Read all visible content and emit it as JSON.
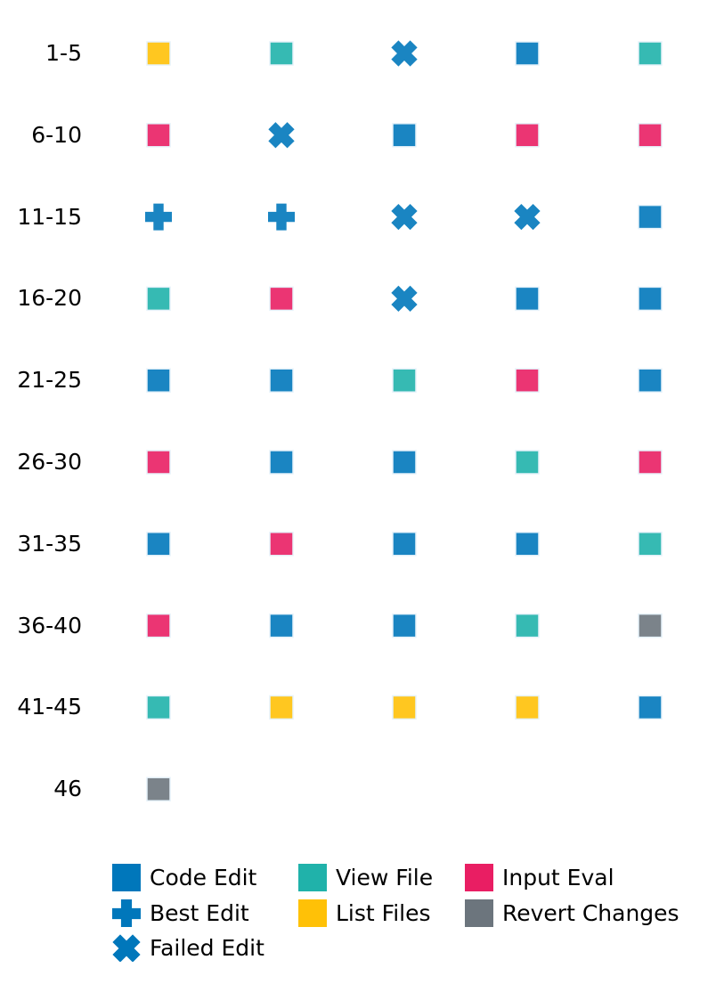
{
  "chart_data": {
    "type": "scatter",
    "title": "",
    "xlabel": "",
    "ylabel": "",
    "rows": [
      {
        "label": "1-5",
        "steps": [
          "list_files",
          "view_file",
          "failed_edit",
          "code_edit",
          "view_file"
        ]
      },
      {
        "label": "6-10",
        "steps": [
          "input_eval",
          "failed_edit",
          "code_edit",
          "input_eval",
          "input_eval"
        ]
      },
      {
        "label": "11-15",
        "steps": [
          "best_edit",
          "best_edit",
          "failed_edit",
          "failed_edit",
          "code_edit"
        ]
      },
      {
        "label": "16-20",
        "steps": [
          "view_file",
          "input_eval",
          "failed_edit",
          "code_edit",
          "code_edit"
        ]
      },
      {
        "label": "21-25",
        "steps": [
          "code_edit",
          "code_edit",
          "view_file",
          "input_eval",
          "code_edit"
        ]
      },
      {
        "label": "26-30",
        "steps": [
          "input_eval",
          "code_edit",
          "code_edit",
          "view_file",
          "input_eval"
        ]
      },
      {
        "label": "31-35",
        "steps": [
          "code_edit",
          "input_eval",
          "code_edit",
          "code_edit",
          "view_file"
        ]
      },
      {
        "label": "36-40",
        "steps": [
          "input_eval",
          "code_edit",
          "code_edit",
          "view_file",
          "revert_changes"
        ]
      },
      {
        "label": "41-45",
        "steps": [
          "view_file",
          "list_files",
          "list_files",
          "list_files",
          "code_edit"
        ]
      },
      {
        "label": "46",
        "steps": [
          "revert_changes"
        ]
      }
    ],
    "legend": [
      {
        "key": "code_edit",
        "label": "Code Edit",
        "marker": "square",
        "color": "#0077BB"
      },
      {
        "key": "best_edit",
        "label": "Best Edit",
        "marker": "plus",
        "color": "#0077BB"
      },
      {
        "key": "failed_edit",
        "label": "Failed Edit",
        "marker": "x",
        "color": "#0077BB"
      },
      {
        "key": "view_file",
        "label": "View File",
        "marker": "square",
        "color": "#20B2AA"
      },
      {
        "key": "list_files",
        "label": "List Files",
        "marker": "square",
        "color": "#FFC107"
      },
      {
        "key": "input_eval",
        "label": "Input Eval",
        "marker": "square",
        "color": "#E91E63"
      },
      {
        "key": "revert_changes",
        "label": "Revert Changes",
        "marker": "square",
        "color": "#6C757D"
      }
    ],
    "legend_placement": "bottom",
    "grid": false
  }
}
